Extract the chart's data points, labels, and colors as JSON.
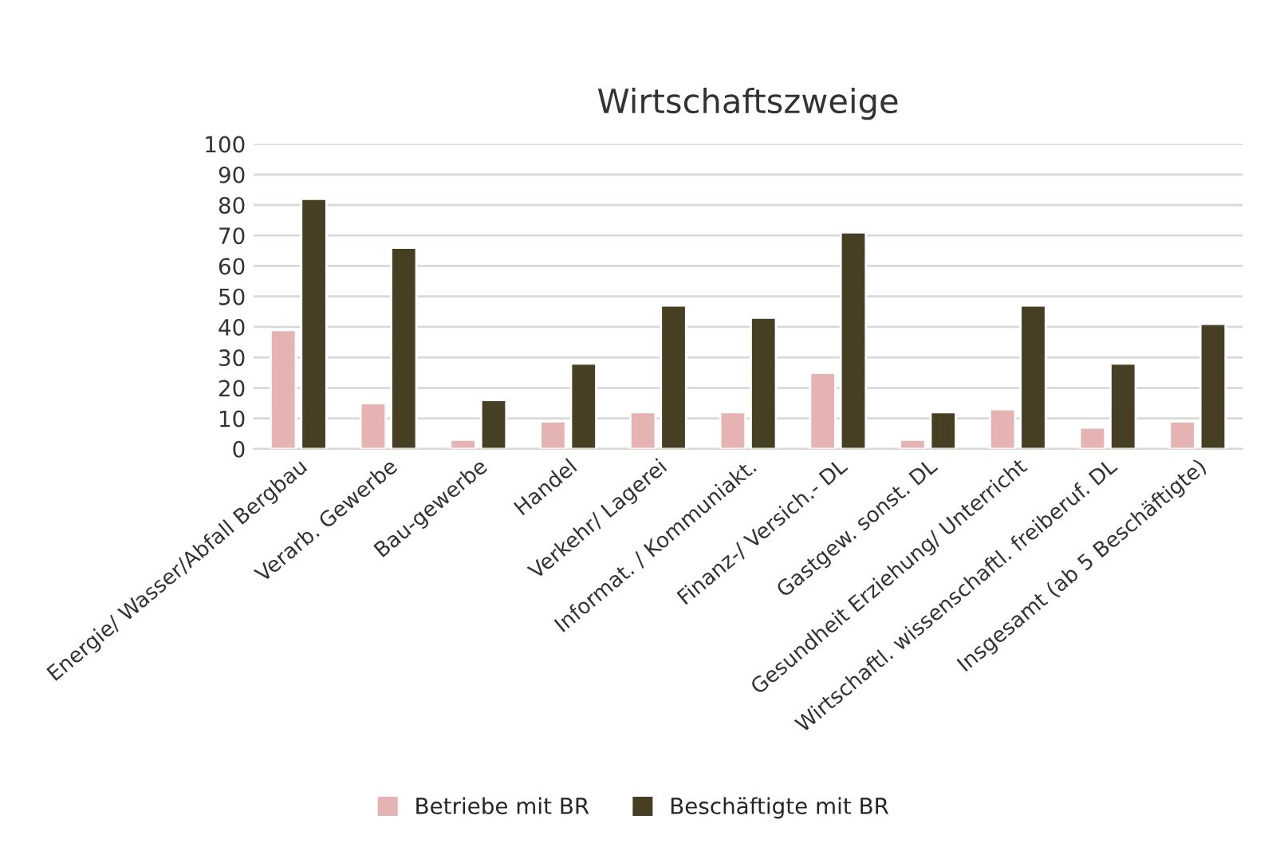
{
  "chart_data": {
    "type": "bar",
    "title": "Wirtschaftszweige",
    "categories": [
      "Energie/ Wasser/Abfall Bergbau",
      "Verarb. Gewerbe",
      "Bau-gewerbe",
      "Handel",
      "Verkehr/ Lagerei",
      "Informat. / Kommuniakt.",
      "Finanz-/ Versich.- DL",
      "Gastgew. sonst. DL",
      "Gesundheit Erziehung/ Unterricht",
      "Wirtschaftl. wissenschaftl. freiberuf. DL",
      "Insgesamt (ab 5 Beschäftigte)"
    ],
    "series": [
      {
        "name": "Betriebe mit BR",
        "color": "#e6b3b3",
        "values": [
          39,
          15,
          3,
          9,
          12,
          12,
          25,
          3,
          13,
          7,
          9
        ]
      },
      {
        "name": "Beschäftigte mit BR",
        "color": "#463f23",
        "values": [
          82,
          66,
          16,
          28,
          47,
          43,
          71,
          12,
          47,
          28,
          41
        ]
      }
    ],
    "ylim": [
      0,
      100
    ],
    "yticks": [
      0,
      10,
      20,
      30,
      40,
      50,
      60,
      70,
      80,
      90,
      100
    ],
    "grid": "y",
    "legend": "bottom"
  }
}
